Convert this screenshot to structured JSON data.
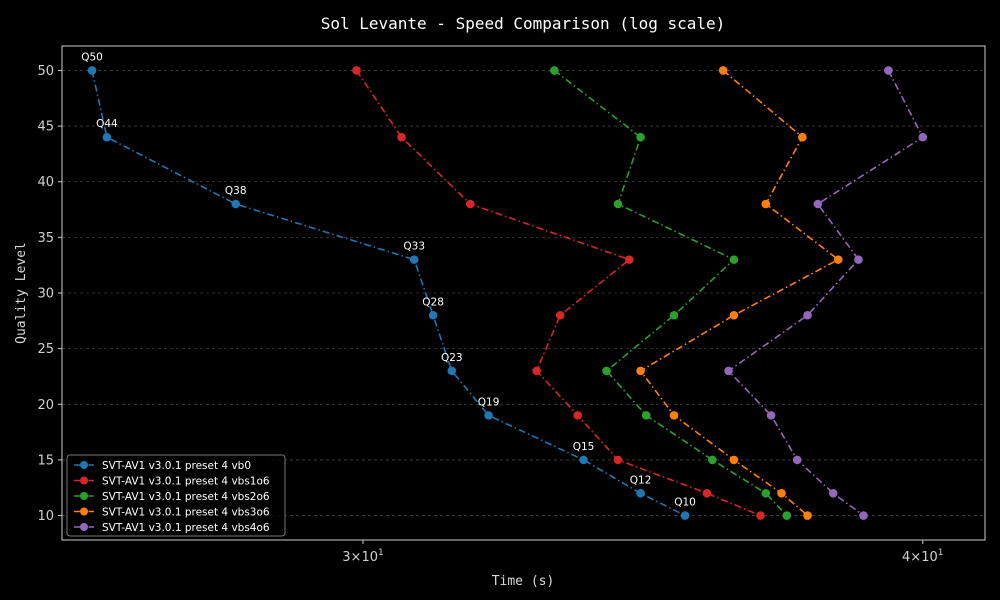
{
  "chart_data": {
    "type": "line",
    "title": "Sol Levante - Speed Comparison (log scale)",
    "xlabel": "Time (s)",
    "ylabel": "Quality Level",
    "xscale": "log",
    "xlim": [
      25.7,
      41.3
    ],
    "ylim": [
      7.8,
      52.2
    ],
    "xticks": [
      {
        "value": 30,
        "base": "3×10",
        "exp": "1"
      },
      {
        "value": 40,
        "base": "4×10",
        "exp": "1"
      }
    ],
    "yticks": [
      10,
      15,
      20,
      25,
      30,
      35,
      40,
      45,
      50
    ],
    "grid": true,
    "legend_position": "lower-left",
    "series": [
      {
        "name": "SVT-AV1 v3.0.1 preset 4 vb0",
        "color": "#1f77b4",
        "x": [
          26.1,
          26.3,
          28.1,
          30.8,
          31.1,
          31.4,
          32.0,
          33.6,
          34.6,
          35.4
        ],
        "y": [
          50,
          44,
          38,
          33,
          28,
          23,
          19,
          15,
          12,
          10
        ]
      },
      {
        "name": "SVT-AV1 v3.0.1 preset 4 vbs1o6",
        "color": "#d62728",
        "x": [
          29.9,
          30.6,
          31.7,
          34.4,
          33.2,
          32.8,
          33.5,
          34.2,
          35.8,
          36.8
        ],
        "y": [
          50,
          44,
          38,
          33,
          28,
          23,
          19,
          15,
          12,
          10
        ]
      },
      {
        "name": "SVT-AV1 v3.0.1 preset 4 vbs2o6",
        "color": "#2ca02c",
        "x": [
          33.1,
          34.6,
          34.2,
          36.3,
          35.2,
          34.0,
          34.7,
          35.9,
          36.9,
          37.3
        ],
        "y": [
          50,
          44,
          38,
          33,
          28,
          23,
          19,
          15,
          12,
          10
        ]
      },
      {
        "name": "SVT-AV1 v3.0.1 preset 4 vbs3o6",
        "color": "#ff7f0e",
        "x": [
          36.1,
          37.6,
          36.9,
          38.3,
          36.3,
          34.6,
          35.2,
          36.3,
          37.2,
          37.7
        ],
        "y": [
          50,
          44,
          38,
          33,
          28,
          23,
          19,
          15,
          12,
          10
        ]
      },
      {
        "name": "SVT-AV1 v3.0.1 preset 4 vbs4o6",
        "color": "#9467bd",
        "x": [
          39.3,
          40.0,
          37.9,
          38.7,
          37.7,
          36.2,
          37.0,
          37.5,
          38.2,
          38.8
        ],
        "y": [
          50,
          44,
          38,
          33,
          28,
          23,
          19,
          15,
          12,
          10
        ]
      }
    ],
    "annotations": [
      {
        "text": "Q50",
        "series": 0,
        "point": 0
      },
      {
        "text": "Q44",
        "series": 0,
        "point": 1
      },
      {
        "text": "Q38",
        "series": 0,
        "point": 2
      },
      {
        "text": "Q33",
        "series": 0,
        "point": 3
      },
      {
        "text": "Q28",
        "series": 0,
        "point": 4
      },
      {
        "text": "Q23",
        "series": 0,
        "point": 5
      },
      {
        "text": "Q19",
        "series": 0,
        "point": 6
      },
      {
        "text": "Q15",
        "series": 0,
        "point": 7
      },
      {
        "text": "Q12",
        "series": 0,
        "point": 8
      },
      {
        "text": "Q10",
        "series": 0,
        "point": 9
      }
    ]
  }
}
